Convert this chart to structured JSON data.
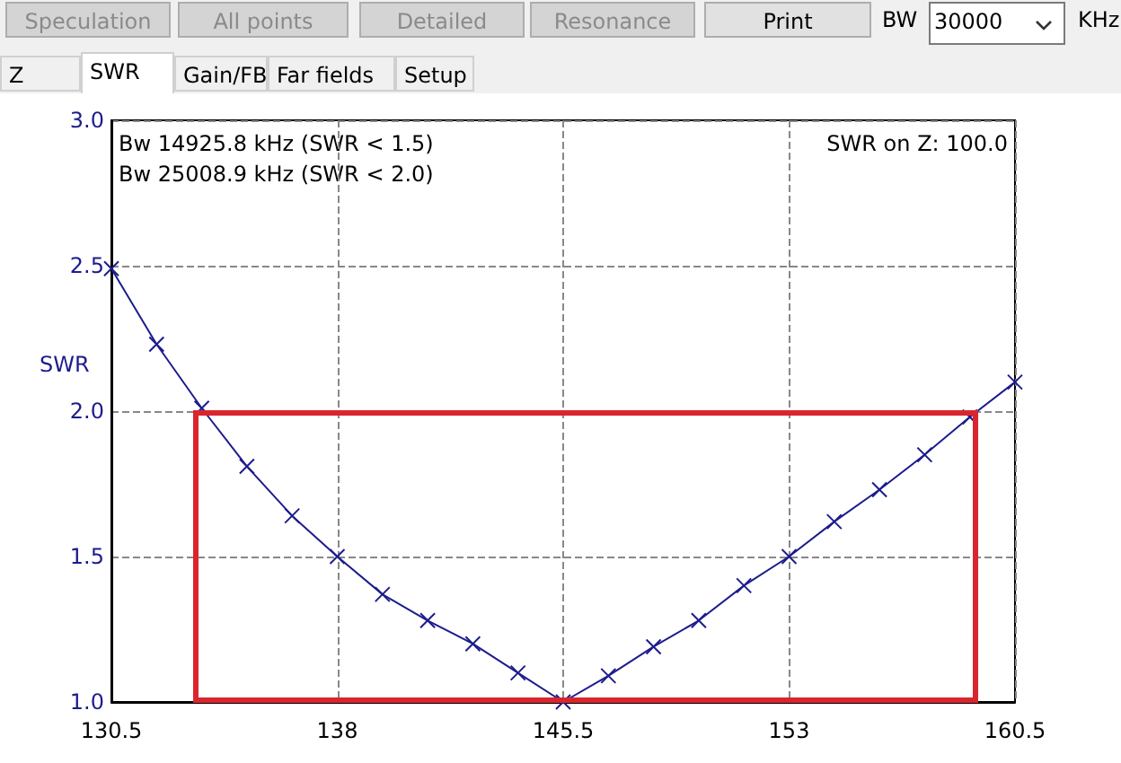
{
  "chart_data": [
    {
      "type": "other",
      "annotations": [
        "Speculation",
        "All points",
        "Detailed",
        "Resonance",
        "Print",
        "BW",
        "30000",
        "KHz",
        "Z",
        "SWR",
        "Gain/FB",
        "Far fields",
        "Setup"
      ]
    },
    {
      "type": "line",
      "ylabel": "SWR",
      "annotations": [
        "Bw 14925.8 kHz (SWR < 1.5)",
        "Bw 25008.9 kHz (SWR < 2.0)",
        "SWR on Z: 100.0"
      ],
      "x": [
        130.5,
        132,
        133.5,
        135,
        136.5,
        138,
        139.5,
        141,
        142.5,
        144,
        145.5,
        147,
        148.5,
        150,
        151.5,
        153,
        154.5,
        156,
        157.5,
        159,
        160.5
      ],
      "series": [
        {
          "color": "#1c1c8c",
          "marker": "cross",
          "values": [
            2.49,
            2.23,
            2.01,
            1.81,
            1.64,
            1.5,
            1.37,
            1.28,
            1.2,
            1.1,
            1.0,
            1.09,
            1.19,
            1.28,
            1.4,
            1.5,
            1.62,
            1.73,
            1.85,
            1.98,
            2.1
          ]
        }
      ],
      "xlim": [
        130.5,
        160.5
      ],
      "xticks": [
        130.5,
        138,
        145.5,
        153,
        160.5
      ],
      "ylim": [
        1,
        3
      ],
      "yticks": [
        {
          "value": 1,
          "label": "1.0"
        },
        {
          "value": 1.5,
          "label": "1.5"
        },
        {
          "value": 2,
          "label": "2.0"
        },
        {
          "value": 2.5,
          "label": "2.5"
        },
        {
          "value": 3,
          "label": "3.0"
        }
      ],
      "grid": true,
      "line_style": "solid"
    }
  ]
}
